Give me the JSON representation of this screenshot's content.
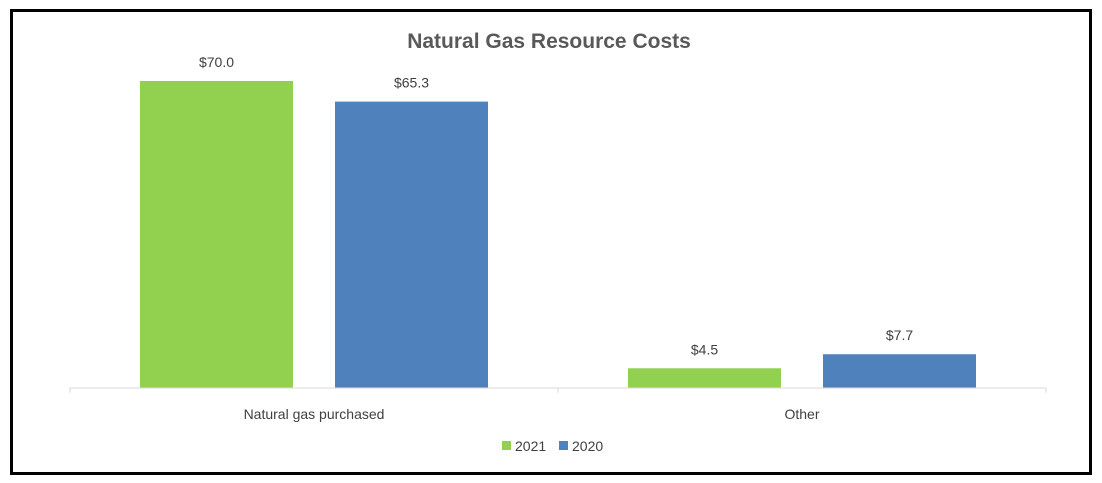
{
  "chart_data": {
    "type": "bar",
    "title": "Natural Gas Resource Costs",
    "categories": [
      "Natural gas purchased",
      "Other"
    ],
    "series": [
      {
        "name": "2021",
        "values": [
          70.0,
          4.5
        ],
        "labels": [
          "$70.0",
          "$4.5"
        ],
        "color": "#92d050"
      },
      {
        "name": "2020",
        "values": [
          65.3,
          7.7
        ],
        "labels": [
          "$65.3",
          "$7.7"
        ],
        "color": "#4f81bd"
      }
    ],
    "ylim": [
      0,
      70
    ],
    "grid": false,
    "legend_position": "bottom"
  }
}
